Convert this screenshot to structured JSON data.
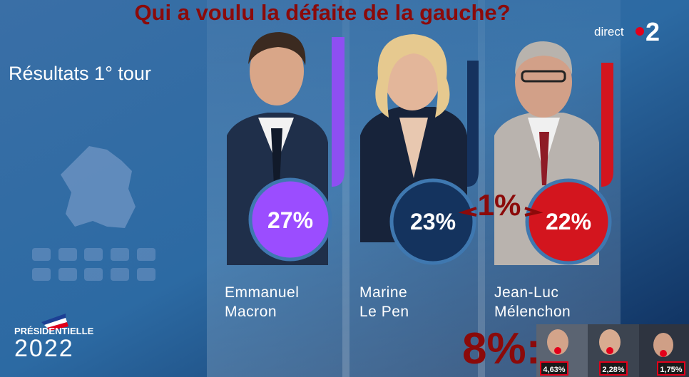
{
  "title": "Qui a voulu la défaite de la gauche?",
  "subtitle": "Résultats 1° tour",
  "channel": {
    "label": "direct",
    "number": "2"
  },
  "brand": {
    "line1": "PRÉSIDENTIELLE",
    "line2": "2022"
  },
  "candidates": [
    {
      "first": "Emmanuel",
      "last": "Macron",
      "result": "27%"
    },
    {
      "first": "Marine",
      "last": "Le Pen",
      "result": "23%"
    },
    {
      "first": "Jean-Luc",
      "last": "Mélenchon",
      "result": "22%"
    }
  ],
  "gap": "1%",
  "others": {
    "total": "8%:",
    "results": [
      "4,63%",
      "2,28%",
      "1,75%"
    ]
  }
}
